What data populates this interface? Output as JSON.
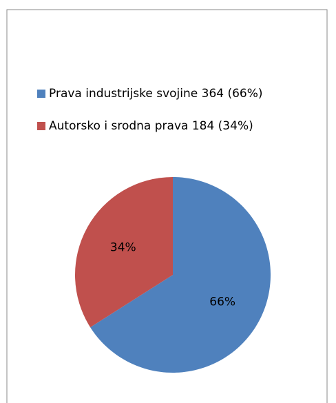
{
  "chart_data": {
    "type": "pie",
    "categories": [
      "Prava industrijske svojine 364 (66%)",
      "Autorsko i srodna prava 184 (34%)"
    ],
    "values": [
      66,
      34
    ],
    "value_labels": [
      "66%",
      "34%"
    ],
    "colors": [
      "#4f81bd",
      "#c0504d"
    ],
    "start_angle": 0,
    "direction": "clockwise",
    "legend": "top"
  }
}
